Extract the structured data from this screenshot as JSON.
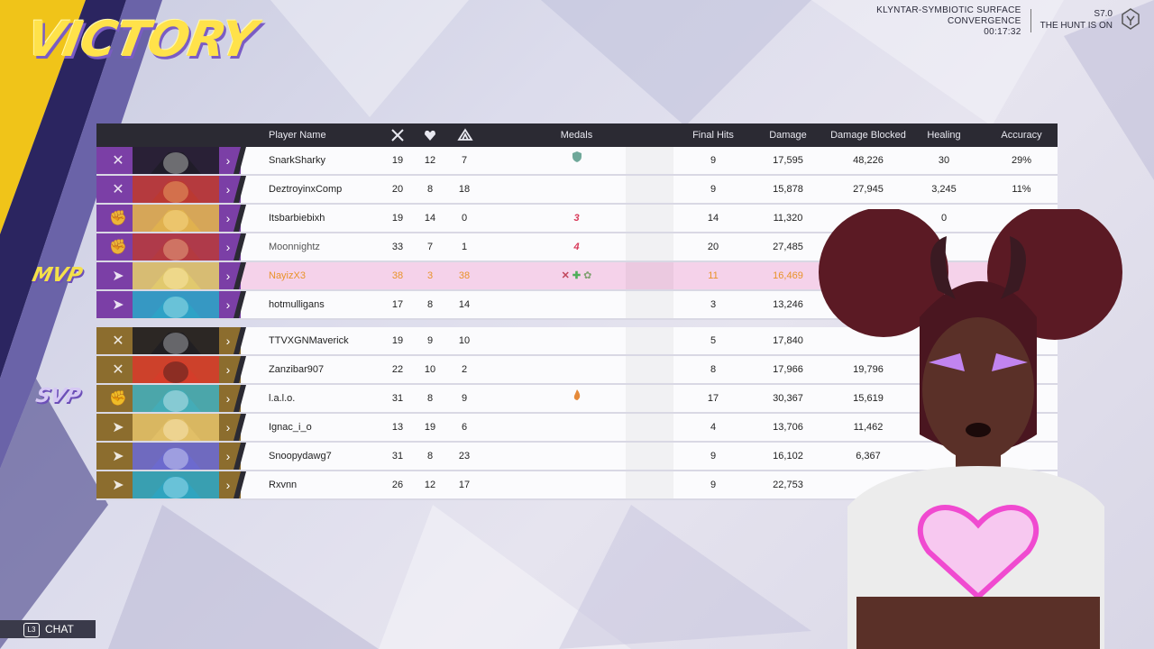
{
  "banner": {
    "title": "VICTORY"
  },
  "top_info": {
    "map_line1": "KLYNTAR-SYMBIOTIC SURFACE",
    "map_line2": "CONVERGENCE",
    "time": "00:17:32",
    "season": "S7.0",
    "season_name": "THE HUNT IS ON"
  },
  "tags": {
    "mvp": "MVP",
    "svp": "SVP"
  },
  "headers": {
    "player_name": "Player Name",
    "medals": "Medals",
    "final_hits": "Final Hits",
    "damage": "Damage",
    "damage_blocked": "Damage Blocked",
    "healing": "Healing",
    "accuracy": "Accuracy"
  },
  "colors": {
    "ally_role": "#7b3fa6",
    "enemy_role": "#8c6d2e",
    "mvp_row": "#f5d2ea",
    "mvp_text": "#e8932a",
    "header": "#2b2a33"
  },
  "team1": [
    {
      "name": "SnarkSharky",
      "k": "19",
      "d": "12",
      "a": "7",
      "medal": "shield-medal",
      "fh": "9",
      "dmg": "17,595",
      "blk": "48,226",
      "heal": "30",
      "acc": "29%"
    },
    {
      "name": "DeztroyinxComp",
      "k": "20",
      "d": "8",
      "a": "18",
      "medal": "",
      "fh": "9",
      "dmg": "15,878",
      "blk": "27,945",
      "heal": "3,245",
      "acc": "11%"
    },
    {
      "name": "Itsbarbiebixh",
      "k": "19",
      "d": "14",
      "a": "0",
      "medal_text": "3",
      "fh": "14",
      "dmg": "11,320",
      "blk": "",
      "heal": "0",
      "acc": ""
    },
    {
      "name": "Moonnightz",
      "k": "33",
      "d": "7",
      "a": "1",
      "medal_text": "4",
      "fh": "20",
      "dmg": "27,485",
      "blk": "",
      "heal": "",
      "acc": ""
    },
    {
      "name": "NayizX3",
      "k": "38",
      "d": "3",
      "a": "38",
      "medal": "kills-heal-assist-medals",
      "fh": "11",
      "dmg": "16,469",
      "blk": "",
      "heal": "",
      "acc": ""
    },
    {
      "name": "hotmulligans",
      "k": "17",
      "d": "8",
      "a": "14",
      "medal": "",
      "fh": "3",
      "dmg": "13,246",
      "blk": "",
      "heal": "",
      "acc": ""
    }
  ],
  "team2": [
    {
      "name": "TTVXGNMaverick",
      "k": "19",
      "d": "9",
      "a": "10",
      "fh": "5",
      "dmg": "17,840",
      "blk": "",
      "heal": "",
      "acc": ""
    },
    {
      "name": "Zanzibar907",
      "k": "22",
      "d": "10",
      "a": "2",
      "fh": "8",
      "dmg": "17,966",
      "blk": "19,796",
      "heal": "",
      "acc": ""
    },
    {
      "name": "l.a.l.o.",
      "k": "31",
      "d": "8",
      "a": "9",
      "medal": "flame-medal",
      "fh": "17",
      "dmg": "30,367",
      "blk": "15,619",
      "heal": "",
      "acc": ""
    },
    {
      "name": "Ignac_i_o",
      "k": "13",
      "d": "19",
      "a": "6",
      "fh": "4",
      "dmg": "13,706",
      "blk": "11,462",
      "heal": "",
      "acc": ""
    },
    {
      "name": "Snoopydawg7",
      "k": "31",
      "d": "8",
      "a": "23",
      "fh": "9",
      "dmg": "16,102",
      "blk": "6,367",
      "heal": "",
      "acc": ""
    },
    {
      "name": "Rxvnn",
      "k": "26",
      "d": "12",
      "a": "17",
      "fh": "9",
      "dmg": "22,753",
      "blk": "",
      "heal": "",
      "acc": ""
    }
  ],
  "chat": {
    "key": "L3",
    "label": "CHAT"
  }
}
